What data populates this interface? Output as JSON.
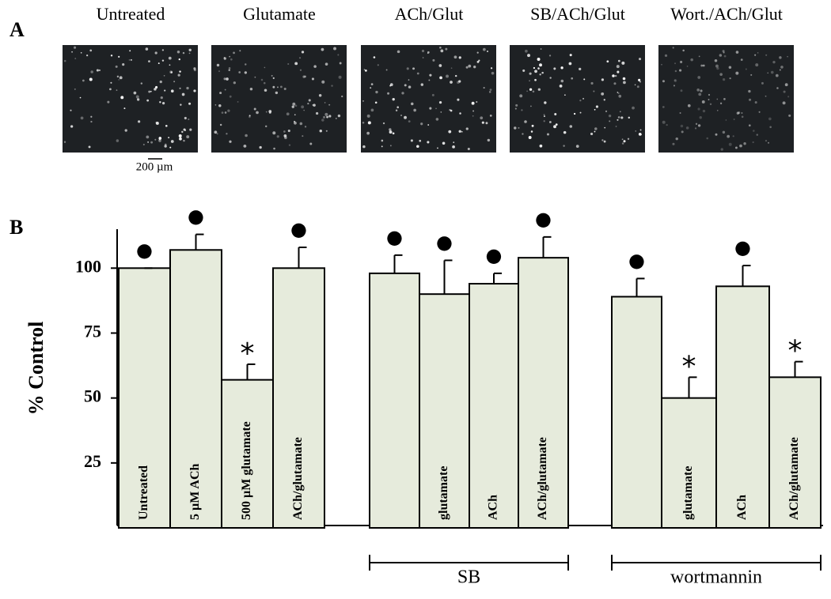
{
  "panel_a": {
    "label": "A",
    "titles": [
      "Untreated",
      "Glutamate",
      "ACh/Glut",
      "SB/ACh/Glut",
      "Wort./ACh/Glut"
    ],
    "scale_bar": "200 µm"
  },
  "chart_data": {
    "type": "bar",
    "panel_label": "B",
    "ylabel": "% Control",
    "categories": [
      "Untreated",
      "5 µM ACh",
      "500 µM glutamate",
      "ACh/glutamate",
      null,
      "glutamate",
      "ACh",
      "ACh/glutamate",
      null,
      "glutamate",
      "ACh",
      "ACh/glutamate"
    ],
    "values": [
      100,
      107,
      57,
      100,
      98,
      90,
      94,
      104,
      89,
      50,
      93,
      58
    ],
    "errors": [
      0,
      6,
      6,
      8,
      7,
      13,
      4,
      8,
      7,
      8,
      8,
      6
    ],
    "annotations": [
      "●",
      "●",
      "*",
      "●",
      "●",
      "●",
      "●",
      "●",
      "●",
      "*",
      "●",
      "*"
    ],
    "groups": [
      "SB",
      "wortmannin"
    ],
    "color": "#e6ebdc",
    "ylim": [
      0,
      115
    ],
    "yticks": [
      25,
      50,
      75,
      100
    ]
  }
}
